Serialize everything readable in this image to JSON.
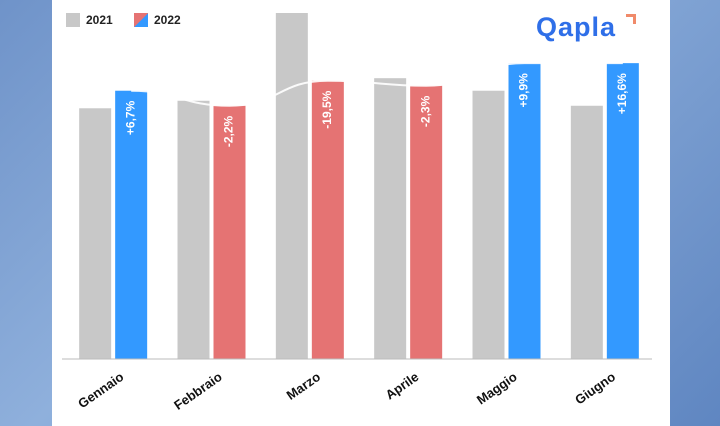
{
  "brand": {
    "logo_text": "Qapla"
  },
  "colors": {
    "y2021": "#c8c8c8",
    "positive": "#3399ff",
    "negative": "#e57373",
    "trend": "#ffffff",
    "logo": "#2f6fe8",
    "logo_accent": "#f08a6a"
  },
  "chart_data": {
    "type": "bar",
    "title": "",
    "xlabel": "",
    "ylabel": "",
    "grid": false,
    "legend": "top-left",
    "categories": [
      "Gennaio",
      "Febbraio",
      "Marzo",
      "Aprile",
      "Maggio",
      "Giugno"
    ],
    "series": [
      {
        "name": "2021",
        "values": [
          100,
          103,
          138,
          112,
          107,
          101
        ]
      },
      {
        "name": "2022",
        "values": [
          107,
          101,
          111,
          109,
          118,
          118
        ]
      }
    ],
    "data_labels": [
      "+6,7%",
      "-2,2%",
      "-19,5%",
      "-2,3%",
      "+9,9%",
      "+16,6%"
    ],
    "ylim": [
      0,
      138
    ],
    "trend_line": true
  }
}
